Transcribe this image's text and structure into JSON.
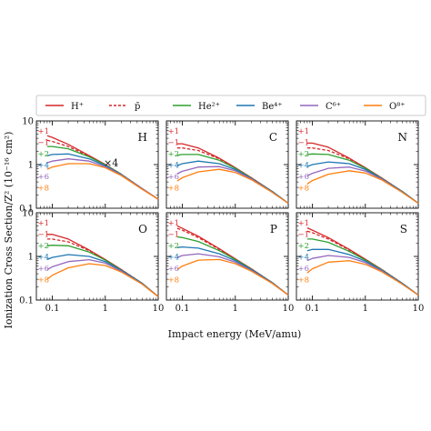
{
  "figure": {
    "ylabel": "Ionization Cross Section/Z² (10⁻¹⁶ cm²)",
    "xlabel": "Impact energy (MeV/amu)",
    "colors": {
      "H+": "#d62728",
      "pbar": "#d62728",
      "He2+": "#2ca02c",
      "Be4+": "#1f77b4",
      "C6+": "#9467bd",
      "O8+": "#ff7f0e"
    }
  },
  "legend": [
    {
      "key": "H+",
      "label": "H⁺",
      "dashed": false
    },
    {
      "key": "pbar",
      "label": "p̄",
      "dashed": true
    },
    {
      "key": "He2+",
      "label": "He²⁺",
      "dashed": false
    },
    {
      "key": "Be4+",
      "label": "Be⁴⁺",
      "dashed": false
    },
    {
      "key": "C6+",
      "label": "C⁶⁺",
      "dashed": false
    },
    {
      "key": "O8+",
      "label": "O⁸⁺",
      "dashed": false
    }
  ],
  "chart_data": {
    "type": "line",
    "xscale": "log",
    "yscale": "log",
    "xlim": [
      0.05,
      10
    ],
    "ylim": [
      0.1,
      10
    ],
    "xticks": [
      {
        "v": 0.1,
        "label": "0.1"
      },
      {
        "v": 1,
        "label": "1"
      },
      {
        "v": 10,
        "label": "10"
      }
    ],
    "yticks": [
      {
        "v": 0.1,
        "label": "0.1"
      },
      {
        "v": 1,
        "label": "1"
      },
      {
        "v": 10,
        "label": "10"
      }
    ],
    "charge_labels": [
      "+1",
      "−1",
      "+2",
      "+4",
      "+6",
      "+8"
    ],
    "panels": [
      {
        "title": "H",
        "annotation": "×4",
        "series": [
          {
            "key": "H+",
            "x": [
              0.08,
              0.1,
              0.2,
              0.5,
              1,
              2,
              5,
              10
            ],
            "y": [
              4.6,
              4.2,
              2.9,
              1.6,
              1.0,
              0.6,
              0.28,
              0.16
            ]
          },
          {
            "key": "pbar",
            "x": [
              0.08,
              0.1,
              0.2,
              0.5,
              1,
              2,
              5,
              10
            ],
            "y": [
              3.6,
              3.4,
              2.6,
              1.55,
              1.0,
              0.6,
              0.28,
              0.16
            ]
          },
          {
            "key": "He2+",
            "x": [
              0.08,
              0.1,
              0.2,
              0.5,
              1,
              2,
              5,
              10
            ],
            "y": [
              2.6,
              2.6,
              2.3,
              1.5,
              0.98,
              0.6,
              0.28,
              0.16
            ]
          },
          {
            "key": "Be4+",
            "x": [
              0.08,
              0.1,
              0.2,
              0.5,
              1,
              2,
              5,
              10
            ],
            "y": [
              1.6,
              1.7,
              1.75,
              1.35,
              0.95,
              0.59,
              0.28,
              0.16
            ]
          },
          {
            "key": "C6+",
            "x": [
              0.08,
              0.1,
              0.2,
              0.5,
              1,
              2,
              5,
              10
            ],
            "y": [
              1.1,
              1.2,
              1.35,
              1.2,
              0.9,
              0.58,
              0.28,
              0.16
            ]
          },
          {
            "key": "O8+",
            "x": [
              0.08,
              0.1,
              0.2,
              0.5,
              1,
              2,
              5,
              10
            ],
            "y": [
              0.78,
              0.88,
              1.05,
              1.05,
              0.85,
              0.56,
              0.27,
              0.16
            ]
          }
        ]
      },
      {
        "title": "C",
        "annotation": "",
        "series": [
          {
            "key": "H+",
            "x": [
              0.08,
              0.1,
              0.2,
              0.5,
              1,
              2,
              5,
              10
            ],
            "y": [
              3.0,
              3.0,
              2.4,
              1.4,
              0.85,
              0.5,
              0.24,
              0.13
            ]
          },
          {
            "key": "pbar",
            "x": [
              0.08,
              0.1,
              0.2,
              0.5,
              1,
              2,
              5,
              10
            ],
            "y": [
              2.4,
              2.4,
              2.1,
              1.35,
              0.84,
              0.5,
              0.24,
              0.13
            ]
          },
          {
            "key": "He2+",
            "x": [
              0.08,
              0.1,
              0.2,
              0.5,
              1,
              2,
              5,
              10
            ],
            "y": [
              1.65,
              1.7,
              1.7,
              1.25,
              0.82,
              0.49,
              0.24,
              0.13
            ]
          },
          {
            "key": "Be4+",
            "x": [
              0.08,
              0.1,
              0.2,
              0.5,
              1,
              2,
              5,
              10
            ],
            "y": [
              0.95,
              1.05,
              1.2,
              1.05,
              0.77,
              0.48,
              0.24,
              0.13
            ]
          },
          {
            "key": "C6+",
            "x": [
              0.08,
              0.1,
              0.2,
              0.5,
              1,
              2,
              5,
              10
            ],
            "y": [
              0.62,
              0.7,
              0.88,
              0.9,
              0.72,
              0.47,
              0.23,
              0.13
            ]
          },
          {
            "key": "O8+",
            "x": [
              0.08,
              0.1,
              0.2,
              0.5,
              1,
              2,
              5,
              10
            ],
            "y": [
              0.42,
              0.5,
              0.68,
              0.78,
              0.66,
              0.45,
              0.23,
              0.13
            ]
          }
        ]
      },
      {
        "title": "N",
        "annotation": "",
        "series": [
          {
            "key": "H+",
            "x": [
              0.08,
              0.1,
              0.2,
              0.5,
              1,
              2,
              5,
              10
            ],
            "y": [
              3.1,
              3.1,
              2.5,
              1.4,
              0.85,
              0.5,
              0.24,
              0.13
            ]
          },
          {
            "key": "pbar",
            "x": [
              0.08,
              0.1,
              0.2,
              0.5,
              1,
              2,
              5,
              10
            ],
            "y": [
              2.4,
              2.4,
              2.1,
              1.35,
              0.84,
              0.5,
              0.24,
              0.13
            ]
          },
          {
            "key": "He2+",
            "x": [
              0.08,
              0.1,
              0.2,
              0.5,
              1,
              2,
              5,
              10
            ],
            "y": [
              1.7,
              1.75,
              1.7,
              1.25,
              0.82,
              0.49,
              0.24,
              0.13
            ]
          },
          {
            "key": "Be4+",
            "x": [
              0.08,
              0.1,
              0.2,
              0.5,
              1,
              2,
              5,
              10
            ],
            "y": [
              0.9,
              1.0,
              1.15,
              1.05,
              0.77,
              0.48,
              0.24,
              0.13
            ]
          },
          {
            "key": "C6+",
            "x": [
              0.08,
              0.1,
              0.2,
              0.5,
              1,
              2,
              5,
              10
            ],
            "y": [
              0.55,
              0.63,
              0.82,
              0.88,
              0.71,
              0.47,
              0.23,
              0.13
            ]
          },
          {
            "key": "O8+",
            "x": [
              0.08,
              0.1,
              0.2,
              0.5,
              1,
              2,
              5,
              10
            ],
            "y": [
              0.36,
              0.43,
              0.6,
              0.72,
              0.64,
              0.45,
              0.23,
              0.13
            ]
          }
        ]
      },
      {
        "title": "O",
        "annotation": "",
        "series": [
          {
            "key": "H+",
            "x": [
              0.08,
              0.1,
              0.2,
              0.5,
              1,
              2,
              5,
              10
            ],
            "y": [
              3.2,
              3.2,
              2.5,
              1.4,
              0.85,
              0.5,
              0.24,
              0.12
            ]
          },
          {
            "key": "pbar",
            "x": [
              0.08,
              0.1,
              0.2,
              0.5,
              1,
              2,
              5,
              10
            ],
            "y": [
              2.5,
              2.5,
              2.15,
              1.35,
              0.84,
              0.5,
              0.24,
              0.12
            ]
          },
          {
            "key": "He2+",
            "x": [
              0.08,
              0.1,
              0.2,
              0.5,
              1,
              2,
              5,
              10
            ],
            "y": [
              1.75,
              1.8,
              1.75,
              1.25,
              0.82,
              0.49,
              0.24,
              0.12
            ]
          },
          {
            "key": "Be4+",
            "x": [
              0.08,
              0.1,
              0.2,
              0.5,
              1,
              2,
              5,
              10
            ],
            "y": [
              0.85,
              0.95,
              1.1,
              1.0,
              0.76,
              0.48,
              0.24,
              0.12
            ]
          },
          {
            "key": "C6+",
            "x": [
              0.08,
              0.1,
              0.2,
              0.5,
              1,
              2,
              5,
              10
            ],
            "y": [
              0.5,
              0.58,
              0.76,
              0.84,
              0.7,
              0.46,
              0.23,
              0.12
            ]
          },
          {
            "key": "O8+",
            "x": [
              0.08,
              0.1,
              0.2,
              0.5,
              1,
              2,
              5,
              10
            ],
            "y": [
              0.3,
              0.37,
              0.55,
              0.68,
              0.62,
              0.44,
              0.23,
              0.12
            ]
          }
        ]
      },
      {
        "title": "P",
        "annotation": "",
        "series": [
          {
            "key": "H+",
            "x": [
              0.08,
              0.1,
              0.2,
              0.5,
              1,
              2,
              5,
              10
            ],
            "y": [
              5.0,
              4.4,
              2.9,
              1.5,
              0.88,
              0.52,
              0.25,
              0.13
            ]
          },
          {
            "key": "pbar",
            "x": [
              0.08,
              0.1,
              0.2,
              0.5,
              1,
              2,
              5,
              10
            ],
            "y": [
              4.4,
              4.0,
              2.7,
              1.45,
              0.87,
              0.52,
              0.25,
              0.13
            ]
          },
          {
            "key": "He2+",
            "x": [
              0.08,
              0.1,
              0.2,
              0.5,
              1,
              2,
              5,
              10
            ],
            "y": [
              2.8,
              2.7,
              2.2,
              1.35,
              0.85,
              0.51,
              0.25,
              0.13
            ]
          },
          {
            "key": "Be4+",
            "x": [
              0.08,
              0.1,
              0.2,
              0.5,
              1,
              2,
              5,
              10
            ],
            "y": [
              1.6,
              1.65,
              1.55,
              1.15,
              0.8,
              0.5,
              0.25,
              0.13
            ]
          },
          {
            "key": "C6+",
            "x": [
              0.08,
              0.1,
              0.2,
              0.5,
              1,
              2,
              5,
              10
            ],
            "y": [
              0.95,
              1.05,
              1.15,
              0.98,
              0.74,
              0.48,
              0.24,
              0.13
            ]
          },
          {
            "key": "O8+",
            "x": [
              0.08,
              0.1,
              0.2,
              0.5,
              1,
              2,
              5,
              10
            ],
            "y": [
              0.5,
              0.6,
              0.82,
              0.85,
              0.68,
              0.46,
              0.24,
              0.13
            ]
          }
        ]
      },
      {
        "title": "S",
        "annotation": "",
        "series": [
          {
            "key": "H+",
            "x": [
              0.08,
              0.1,
              0.2,
              0.5,
              1,
              2,
              5,
              10
            ],
            "y": [
              4.5,
              4.0,
              2.7,
              1.45,
              0.86,
              0.51,
              0.24,
              0.13
            ]
          },
          {
            "key": "pbar",
            "x": [
              0.08,
              0.1,
              0.2,
              0.5,
              1,
              2,
              5,
              10
            ],
            "y": [
              3.8,
              3.5,
              2.5,
              1.4,
              0.85,
              0.51,
              0.24,
              0.13
            ]
          },
          {
            "key": "He2+",
            "x": [
              0.08,
              0.1,
              0.2,
              0.5,
              1,
              2,
              5,
              10
            ],
            "y": [
              2.5,
              2.5,
              2.1,
              1.3,
              0.83,
              0.5,
              0.24,
              0.13
            ]
          },
          {
            "key": "Be4+",
            "x": [
              0.08,
              0.1,
              0.2,
              0.5,
              1,
              2,
              5,
              10
            ],
            "y": [
              1.35,
              1.45,
              1.45,
              1.1,
              0.78,
              0.49,
              0.24,
              0.13
            ]
          },
          {
            "key": "C6+",
            "x": [
              0.08,
              0.1,
              0.2,
              0.5,
              1,
              2,
              5,
              10
            ],
            "y": [
              0.8,
              0.9,
              1.05,
              0.95,
              0.72,
              0.47,
              0.23,
              0.13
            ]
          },
          {
            "key": "O8+",
            "x": [
              0.08,
              0.1,
              0.2,
              0.5,
              1,
              2,
              5,
              10
            ],
            "y": [
              0.42,
              0.52,
              0.74,
              0.8,
              0.66,
              0.45,
              0.23,
              0.13
            ]
          }
        ]
      }
    ]
  }
}
